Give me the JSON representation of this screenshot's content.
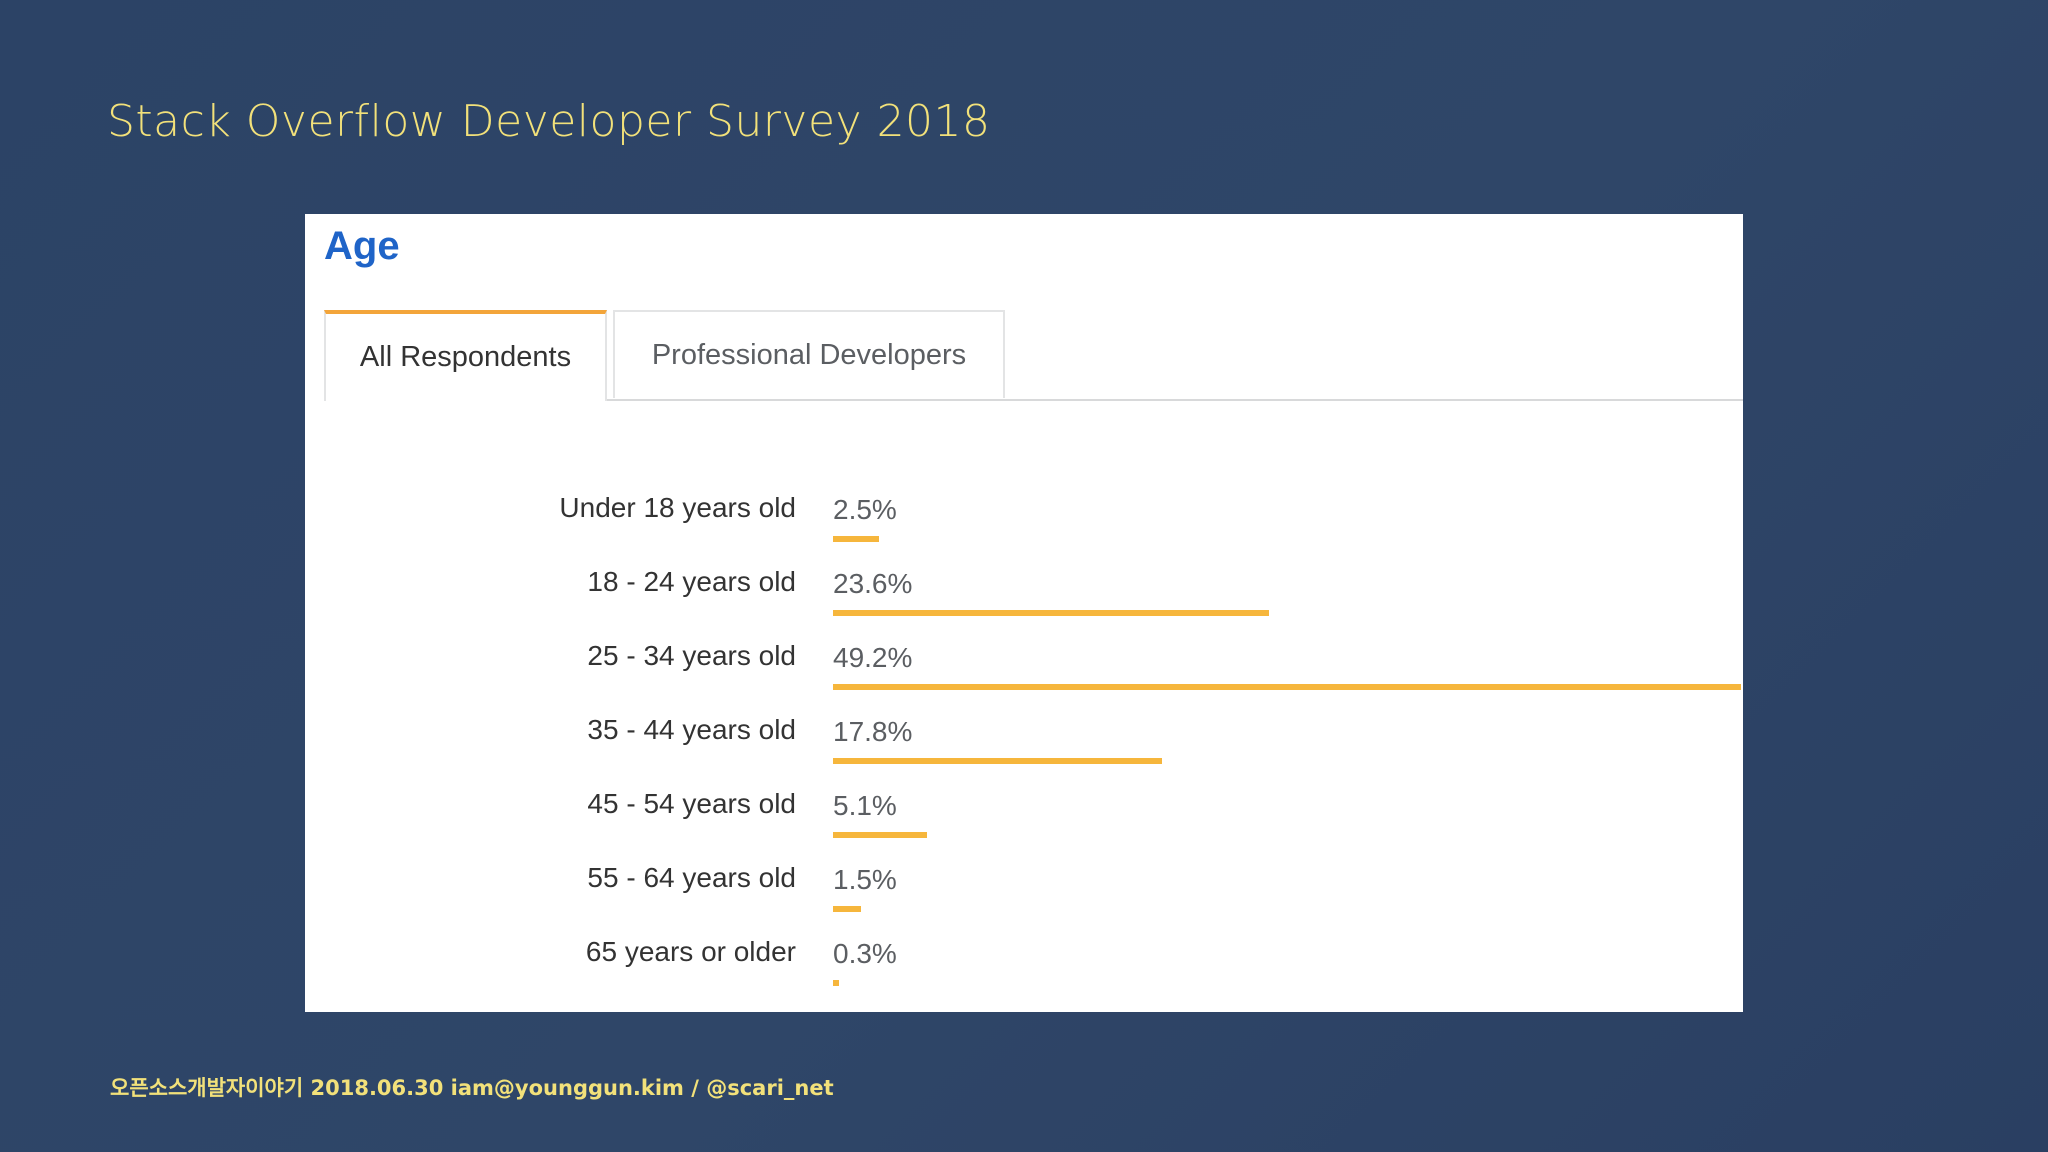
{
  "slide": {
    "title": "Stack Overflow Developer Survey 2018",
    "footer": "오픈소스개발자이야기 2018.06.30 iam@younggun.kim / @scari_net"
  },
  "card": {
    "heading": "Age",
    "tabs": [
      {
        "label": "All Respondents",
        "active": true
      },
      {
        "label": "Professional Developers",
        "active": false
      }
    ]
  },
  "colors": {
    "background": "#2f4668",
    "title": "#f2e17a",
    "heading": "#1f64c8",
    "bar": "#f6b63c",
    "active_tab_accent": "#f3a53a"
  },
  "chart_data": {
    "type": "bar",
    "orientation": "horizontal",
    "title": "Age",
    "categories": [
      "Under 18 years old",
      "18 - 24 years old",
      "25 - 34 years old",
      "35 - 44 years old",
      "45 - 54 years old",
      "55 - 64 years old",
      "65 years or older"
    ],
    "values": [
      2.5,
      23.6,
      49.2,
      17.8,
      5.1,
      1.5,
      0.3
    ],
    "value_labels": [
      "2.5%",
      "23.6%",
      "49.2%",
      "17.8%",
      "5.1%",
      "1.5%",
      "0.3%"
    ],
    "unit": "%",
    "xlim": [
      0,
      49.2
    ],
    "grid": false,
    "legend": "none"
  }
}
